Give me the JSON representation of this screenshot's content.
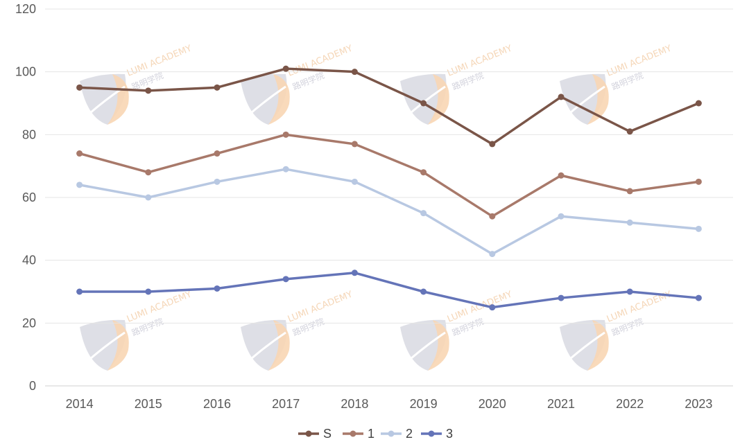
{
  "chart_data": {
    "type": "line",
    "title": "",
    "xlabel": "",
    "ylabel": "",
    "categories": [
      "2014",
      "2015",
      "2016",
      "2017",
      "2018",
      "2019",
      "2020",
      "2021",
      "2022",
      "2023"
    ],
    "ylim": [
      0,
      120
    ],
    "yticks": [
      0,
      20,
      40,
      60,
      80,
      100,
      120
    ],
    "grid": true,
    "legend_position": "bottom",
    "series": [
      {
        "name": "S",
        "color": "#7a5548",
        "values": [
          95,
          94,
          95,
          101,
          100,
          90,
          77,
          92,
          81,
          90
        ]
      },
      {
        "name": "1",
        "color": "#a8796a",
        "values": [
          74,
          68,
          74,
          80,
          77,
          68,
          54,
          67,
          62,
          65
        ]
      },
      {
        "name": "2",
        "color": "#b8c8e2",
        "values": [
          64,
          60,
          65,
          69,
          65,
          55,
          42,
          54,
          52,
          50
        ]
      },
      {
        "name": "3",
        "color": "#6474b8",
        "values": [
          30,
          30,
          31,
          34,
          36,
          30,
          25,
          28,
          30,
          28
        ]
      }
    ]
  },
  "watermark": {
    "text_en": "LUMI ACADEMY",
    "text_cn": "路明学院",
    "shield_color": "#d8d9e2",
    "accent_color": "#f8d6b4"
  }
}
